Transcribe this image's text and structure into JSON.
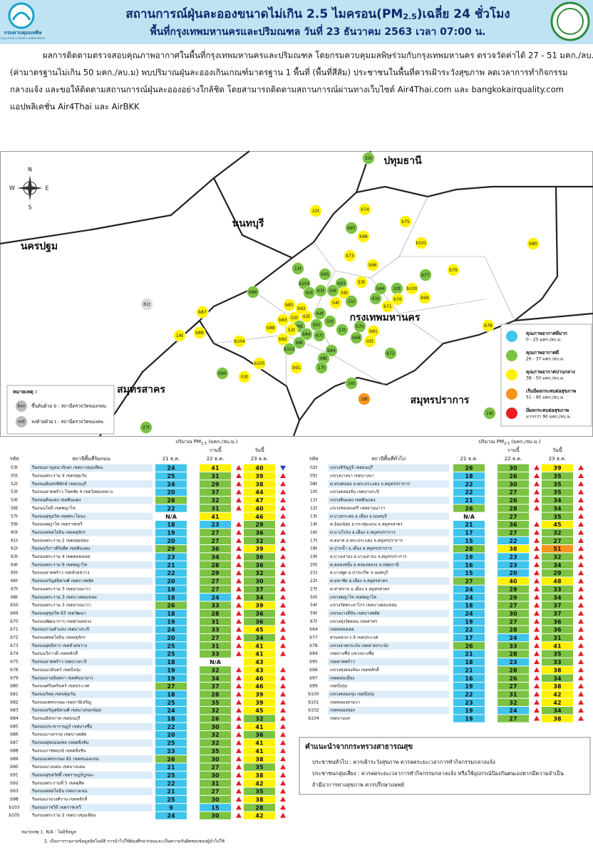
{
  "header": {
    "title_main": "สถานการณ์ฝุ่นละอองขนาดไม่เกิน 2.5 ไมครอน(PM",
    "title_sub": "2.5",
    "title_end": ")เฉลี่ย 24 ชั่วโมง",
    "subtitle": "พื้นที่กรุงเทพมหานครและปริมณฑล วันที่ 23 ธันวาคม 2563 เวลา 07:00 น.",
    "logo_th": "กรมควบคุมมลพิษ",
    "logo_en": "POLLUTION CONTROL DEPARTMENT"
  },
  "intro": {
    "lines": [
      "ผลการติดตามตรวจสอบคุณภาพอากาศในพื้นที่กรุงเทพมหานครและปริมณฑล โดยกรมควบคุมมลพิษร่วมกับกรุงเทพมหานคร ตรวจวัดค่าได้ 27 - 51 มคก./ลบ.ม.",
      "(ค่ามาตรฐานไม่เกิน 50 มคก./ลบ.ม) พบปริมาณฝุ่นละอองเกินเกณฑ์มาตรฐาน 1 พื้นที่ (พื้นที่สีส้ม) ประชาชนในพื้นที่ควรเฝ้าระวังสุขภาพ ลดเวลาการทำกิจกรรม",
      "กลางแจ้ง และขอให้ติดตามสถานการณ์ฝุ่นละอองอย่างใกล้ชิด โดยสามารถติดตามสถานการณ์ผ่านทางเว็บไซต์ Air4Thai.com และ bangkokairquality.com",
      "แอปพลิเคชั่น Air4Thai และ AirBKK"
    ]
  },
  "map": {
    "regions": [
      "ปทุมธานี",
      "นนทบุรี",
      "นครปฐม",
      "กรุงเทพมหานคร",
      "สมุทรสาคร",
      "สมุทรปราการ"
    ],
    "compass": {
      "n": "N",
      "s": "S",
      "e": "E",
      "w": "W"
    },
    "stations": [
      "20t",
      "22t",
      "b74",
      "b75",
      "b97",
      "b98",
      "b101",
      "b80",
      "b73",
      "b96",
      "b79",
      "b77",
      "13t",
      "b95",
      "b93",
      "53t",
      "b103",
      "60t",
      "63t",
      "59t",
      "56t",
      "b64",
      "10t",
      "b100",
      "b99",
      "11t",
      "61t",
      "b76",
      "b71",
      "54t",
      "b86",
      "81t",
      "b85",
      "b87",
      "02t",
      "62t",
      "64t",
      "50t",
      "b83",
      "65t",
      "66t",
      "b92",
      "b88",
      "52t",
      "b89",
      "14t",
      "b70",
      "b81",
      "b78",
      "12t",
      "b84",
      "67t",
      "b69",
      "b104",
      "b82",
      "68t",
      "b94",
      "05t",
      "b72",
      "b102",
      "b90",
      "03t",
      "b105",
      "b91",
      "08t",
      "17t",
      "16t",
      "18t",
      "19t",
      "27t"
    ],
    "legend": {
      "levels": [
        {
          "label": "คุณภาพอากาศดีมาก",
          "range": "0 - 25 มคก./ลบ.ม.",
          "color": "#3fc4ec",
          "upper": 25
        },
        {
          "label": "คุณภาพอากาศดี",
          "range": "26 - 37 มคก./ลบ.ม.",
          "color": "#7cc243",
          "upper": 37
        },
        {
          "label": "คุณภาพอากาศปานกลาง",
          "range": "38 - 50 มคก./ลบ.ม.",
          "color": "#fff200",
          "upper": 50
        },
        {
          "label": "เริ่มมีผลกระทบต่อสุขภาพ",
          "range": "51 - 90 มคก./ลบ.ม.",
          "color": "#f7941d",
          "upper": 90
        },
        {
          "label": "มีผลกระทบต่อสุขภาพ",
          "range": "มากกว่า 90 มคก./ลบ.ม.",
          "color": "#ed1c24",
          "upper": null
        }
      ]
    },
    "note": {
      "title": "หมายเหตุ :",
      "items": [
        {
          "symbol": "bxx",
          "text": "ขึ้นต้นด้วย b : สถานีตรวจวัดของกทม."
        },
        {
          "symbol": "xxt",
          "text": "ลงท้ายด้วย t : สถานีตรวจวัดของคพ."
        }
      ]
    }
  },
  "tables": {
    "unit_pre": "ปริมาณ PM",
    "unit_sub": "2.5",
    "unit_post": " (มคก./ลบ.ม.)",
    "col_code": "รหัส",
    "col_d21": "21 ธ.ค.",
    "col_d22": "22 ธ.ค.",
    "col_d23": "23 ธ.ค.",
    "yesterday": "วานนี้",
    "today": "วันนี้",
    "arrow_colors": {
      "up": "#e31e24",
      "down": "#1d3fc4"
    },
    "left": {
      "heading": "สถานีพื้นที่ริมถนน",
      "rows": [
        [
          "03t",
          "ริมถนนกาญจนาภิเษก เขตบางขุนเทียน",
          24,
          41,
          40
        ],
        [
          "05t",
          "ริมถนนพระราม 4 เขตปทุมวัน",
          25,
          31,
          39
        ],
        [
          "52t",
          "ริมถนนอินทรพิทักษ์ เขตธนบุรี",
          24,
          29,
          38
        ],
        [
          "53t",
          "ริมถนนลาดพร้าว โชคชัย 4 เขตวังทองหลาง",
          20,
          37,
          44
        ],
        [
          "54t",
          "ริมถนนดินแดง เขตดินแดง",
          28,
          32,
          47
        ],
        [
          "56t",
          "ริมถนนโยธี เขตพญาไท",
          22,
          31,
          40
        ],
        [
          "57t",
          "ริมถนนสุขุมวิท เขตพระโขนง",
          "N/A",
          41,
          46
        ],
        [
          "59t",
          "ริมถนนพญาไท เขตราชเทวี",
          18,
          23,
          29
        ],
        [
          "60t",
          "ริมถนนพหลโยธิน เขตจตุจักร",
          19,
          27,
          36
        ],
        [
          "61t",
          "ริมถนนพระราม 2 เขตจอมทอง",
          20,
          27,
          32
        ],
        [
          "62t",
          "ริมถนนวิภาวดีรังสิต เขตดินแดง",
          29,
          36,
          39
        ],
        [
          "63t",
          "ริมถนนพระราม 4 เขตคลองเตย",
          23,
          34,
          36
        ],
        [
          "64t",
          "ริมถนนพระราม 6 เขตพญาไท",
          21,
          28,
          36
        ],
        [
          "65t",
          "ริมถนนลาดพร้าว เขตห้วยขวาง",
          22,
          29,
          32
        ],
        [
          "66t",
          "ริมถนนจรัญสนิทวงศ์ เขตบางพลัด",
          20,
          27,
          30
        ],
        [
          "67t",
          "ริมถนนพระราม 3 เขตยานนาวา",
          19,
          27,
          37
        ],
        [
          "68t",
          "ริมถนนพระราม 3 เขตบางคอแหลม",
          18,
          24,
          34
        ],
        [
          "b50",
          "ริมถนนพระราม 3 เขตยานนาวา",
          26,
          33,
          39
        ],
        [
          "b69",
          "ริมถนนสุขุมวิท 63 เขตวัฒนา",
          18,
          28,
          36
        ],
        [
          "b70",
          "ริมถนนพัฒนาการ เขตสวนหลวง",
          19,
          31,
          36
        ],
        [
          "b71",
          "ริมถนนรามคำแหง เขตบางกะปิ",
          24,
          33,
          45
        ],
        [
          "b72",
          "ริมถนนพหลโยธิน เขตจตุจักร",
          20,
          27,
          34
        ],
        [
          "b73",
          "ริมถนนสุทธิสาร เขตห้วยขวาง",
          25,
          31,
          41
        ],
        [
          "b74",
          "ริมถนนวิภาวดี เขตหลักสี่",
          25,
          33,
          41
        ],
        [
          "b75",
          "ริมถนนลาดพร้าว เขตบางกะปิ",
          18,
          "N/A",
          43
        ],
        [
          "b76",
          "ริมถนนนวมินทร์ เขตบึงกุ่ม",
          19,
          32,
          43
        ],
        [
          "b79",
          "ริมถนนรามอินทรา เขตคันนายาว",
          19,
          34,
          46
        ],
        [
          "b80",
          "ริมถนนศรีนครินทร์ เขตประเวศ",
          27,
          37,
          46
        ],
        [
          "b81",
          "ริมถนนวิทยุ เขตปทุมวัน",
          18,
          28,
          39
        ],
        [
          "b82",
          "ริมถนนเพชรเกษม เขตภาษีเจริญ",
          25,
          35,
          39
        ],
        [
          "b83",
          "ริมถนนจรัญสนิทวงศ์ เขตบางกอกน้อย",
          24,
          32,
          45
        ],
        [
          "b84",
          "ริมถนนอิสรภาพ เขตธนบุรี",
          18,
          26,
          32
        ],
        [
          "b85",
          "ริมถนนประชาราษฎร์ เขตบางซื่อ",
          22,
          30,
          41
        ],
        [
          "b86",
          "ริมถนนบางกรวย เขตบางพลัด",
          20,
          32,
          36
        ],
        [
          "b87",
          "ริมถนนพุทธมณฑล เขตตลิ่งชัน",
          25,
          32,
          41
        ],
        [
          "b88",
          "ริมถนนราชพฤกษ์ เขตตลิ่งชัน",
          23,
          35,
          41
        ],
        [
          "b89",
          "ริมถนนเพชรเกษม 81 เขตหนองแขม",
          26,
          30,
          38
        ],
        [
          "b90",
          "ริมถนนบางบอน เขตบางบอน",
          21,
          27,
          35
        ],
        [
          "b91",
          "ริมถนนสุขสวัสดิ์ เขตราษฎร์บูรณะ",
          25,
          30,
          38
        ],
        [
          "b92",
          "ริมถนนพระรามที่ 5 เขตดุสิต",
          22,
          31,
          42
        ],
        [
          "b93",
          "ริมถนนพหลโยธิน เขตบางเขน",
          21,
          27,
          35
        ],
        [
          "b98",
          "ริมถนนงามวงศ์วาน เขตหลักสี่",
          25,
          30,
          38
        ],
        [
          "b103",
          "ริมถนนราชวิถี เขตราชเทวี",
          9,
          15,
          28
        ],
        [
          "b105",
          "ริมถนนพระราม 2 เขตบางขุนเทียน",
          24,
          30,
          42
        ]
      ]
    },
    "right": {
      "heading": "สถานีพื้นที่ทั่วไป",
      "rows": [
        [
          "02t",
          "แขวงหิรัญรูจี เขตธนบุรี",
          26,
          30,
          39
        ],
        [
          "05t",
          "แขวงบางนา เขตบางนา",
          18,
          26,
          35
        ],
        [
          "08t",
          "ต.ทรงคนอง อ.พระประแดง จ.สมุทรปราการ",
          22,
          30,
          35
        ],
        [
          "10t",
          "แขวงคลองจั่น เขตบางกะปิ",
          22,
          27,
          35
        ],
        [
          "11t",
          "แขวงดินแดง เขตดินแดง",
          21,
          26,
          34
        ],
        [
          "12t",
          "แขวงช่องนนทรี เขตยานนาวา",
          26,
          28,
          34
        ],
        [
          "13t",
          "ต.บางกระสอ อ.เมือง จ.นนทบุรี",
          "N/A",
          27,
          35
        ],
        [
          "14t",
          "ต.อ้อมน้อย อ.กระทุ่มแบน จ.สมุทรสาคร",
          21,
          36,
          45
        ],
        [
          "16t",
          "ต.บางโปรง อ.เมือง จ.สมุทรปราการ",
          17,
          27,
          32
        ],
        [
          "17t",
          "ต.ตลาด อ.พระประแดง จ.สมุทรปราการ",
          15,
          22,
          27
        ],
        [
          "18t",
          "ต.ปากน้ำ อ.เมือง จ.สมุทรปราการ",
          28,
          38,
          51
        ],
        [
          "19t",
          "ต.บางเสาธง อ.บางเสาธง จ.สมุทรปราการ",
          19,
          23,
          32
        ],
        [
          "20t",
          "ต.คลองหนึ่ง อ.คลองหลวง จ.ปทุมธานี",
          16,
          23,
          34
        ],
        [
          "21t",
          "ต.บางพูด อ.ปากเกร็ด จ.นนทบุรี",
          15,
          20,
          29
        ],
        [
          "22t",
          "ต.มหาชัย อ.เมือง จ.สมุทรสาคร",
          27,
          40,
          48
        ],
        [
          "27t",
          "ต.ท่าทราย อ.เมือง จ.สมุทรสาคร",
          24,
          29,
          33
        ],
        [
          "50t",
          "แขวงพญาไท เขตพญาไท",
          24,
          29,
          34
        ],
        [
          "54t",
          "แขวงวัดพระยาไกร เขตบางคอแหลม",
          18,
          27,
          37
        ],
        [
          "59t",
          "แขวงบางยี่ขัน เขตบางพลัด",
          24,
          30,
          37
        ],
        [
          "67t",
          "แขวงทุ่งวัดดอน เขตสาทร",
          19,
          27,
          36
        ],
        [
          "b64",
          "เขตคลองเตย",
          22,
          28,
          36
        ],
        [
          "b77",
          "สวนหลวง ร.9 เขตประเวศ",
          17,
          24,
          31
        ],
        [
          "b78",
          "แขวงลาดกระบัง เขตลาดกระบัง",
          26,
          33,
          41
        ],
        [
          "b94",
          "เขตบางซื่อ แขวงบางซื่อ",
          21,
          28,
          35
        ],
        [
          "b95",
          "เขตลาดพร้าว",
          18,
          23,
          33
        ],
        [
          "b96",
          "แขวงทุ่งสองห้อง เขตหลักสี่",
          21,
          28,
          38
        ],
        [
          "b97",
          "เขตดอนเมือง",
          16,
          26,
          34
        ],
        [
          "b99",
          "เขตบึงกุ่ม",
          19,
          27,
          38
        ],
        [
          "b100",
          "แขวงคลองกุ่ม เขตบึงกุ่ม",
          22,
          31,
          42
        ],
        [
          "b101",
          "เขตคลองสามวา",
          23,
          32,
          42
        ],
        [
          "b102",
          "เขตหนองจอก",
          19,
          24,
          34
        ],
        [
          "b104",
          "เขตบางแค",
          19,
          27,
          38
        ]
      ]
    }
  },
  "advice": {
    "title": "คำแนะนำจากกระทรวงสาธารณสุข",
    "lines": [
      "ประชาชนทั่วไป : ควรเฝ้าระวังสุขภาพ ควรลดระยะเวลาการทำกิจกรรมกลางแจ้ง",
      "ประชาชนกลุ่มเสี่ยง : ควรลดระยะเวลาการทำกิจกรรมกลางแจ้ง หรือใช้อุปกรณ์ป้องกันตนเองหากมีความจำเป็น",
      "ถ้ามีอาการทางสุขภาพ ควรปรึกษาแพทย์"
    ]
  },
  "footnote": {
    "lines": [
      "หมายเหตุ 1. N/A : ไม่มีข้อมูล",
      "2. เป็นการรายงานข้อมูลอัตโนมัติ การนำไปใช้ต้องศึกษาก่อนและเป็นความรับผิดชอบของผู้นำไปใช้"
    ]
  }
}
